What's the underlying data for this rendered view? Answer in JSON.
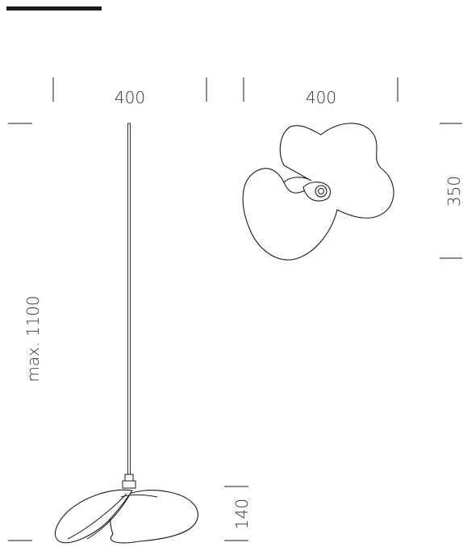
{
  "dimensions": {
    "front_width": "400",
    "top_width": "400",
    "top_depth": "350",
    "max_height": "max. 1100",
    "shade_height": "140"
  },
  "colors": {
    "line": "#1a1a1a",
    "text": "#333333",
    "background": "#ffffff"
  }
}
